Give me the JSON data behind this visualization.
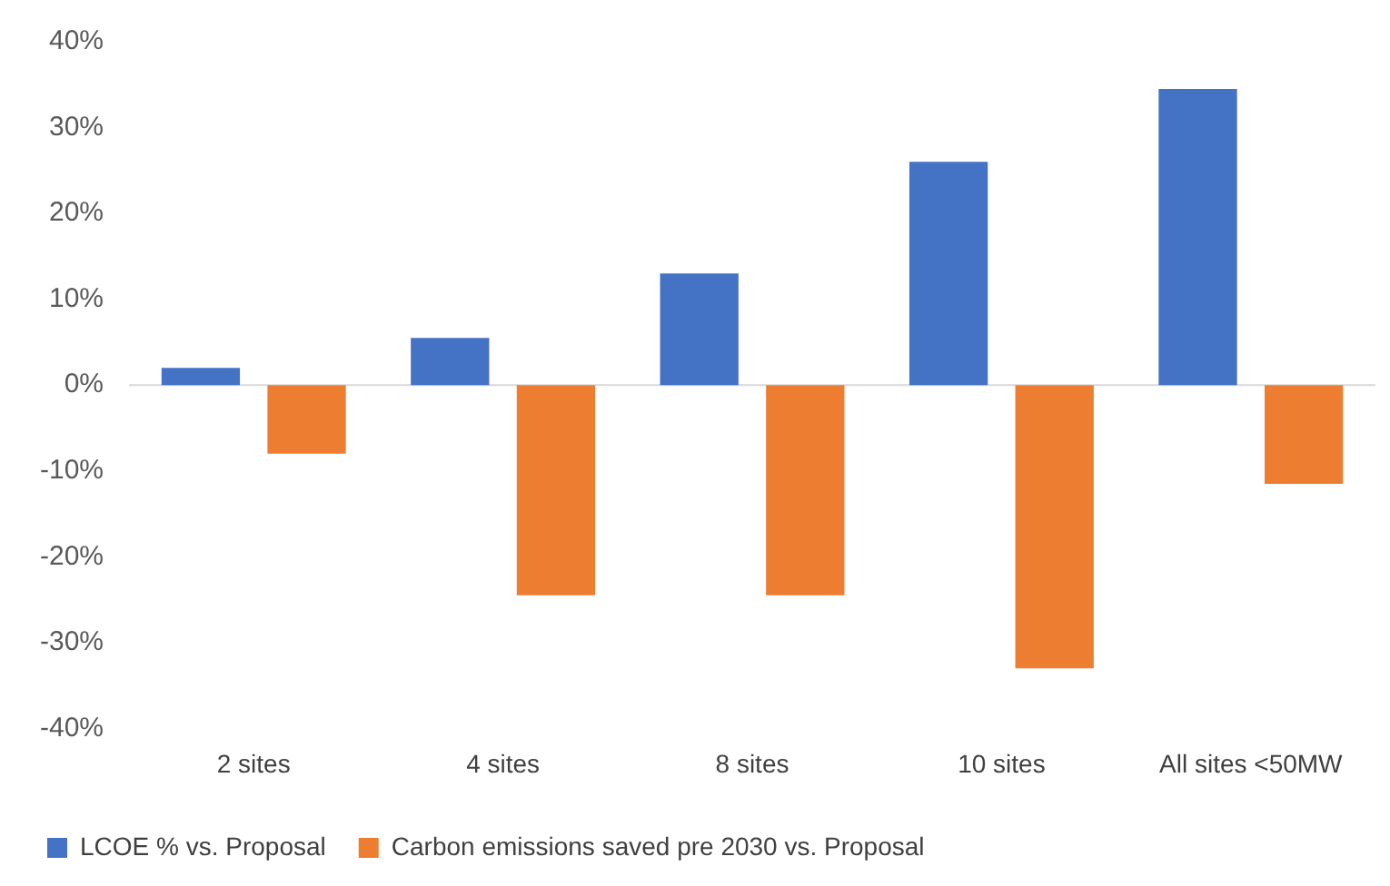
{
  "chart_data": {
    "type": "bar",
    "categories": [
      "2 sites",
      "4 sites",
      "8 sites",
      "10 sites",
      "All sites <50MW"
    ],
    "series": [
      {
        "name": "LCOE % vs. Proposal",
        "color": "#4472c4",
        "values": [
          2,
          5.5,
          13,
          26,
          34.5
        ]
      },
      {
        "name": "Carbon emissions saved pre 2030 vs. Proposal",
        "color": "#ed7d31",
        "values": [
          -8,
          -24.5,
          -24.5,
          -33,
          -11.5
        ]
      }
    ],
    "ylim": [
      -40,
      40
    ],
    "yticks": [
      {
        "value": -40,
        "label": "-40%"
      },
      {
        "value": -30,
        "label": "-30%"
      },
      {
        "value": -20,
        "label": "-20%"
      },
      {
        "value": -10,
        "label": "-10%"
      },
      {
        "value": 0,
        "label": "0%"
      },
      {
        "value": 10,
        "label": "10%"
      },
      {
        "value": 20,
        "label": "20%"
      },
      {
        "value": 30,
        "label": "30%"
      },
      {
        "value": 40,
        "label": "40%"
      }
    ],
    "ref_lines": [
      {
        "axis": "y",
        "value": 0,
        "color": "#d9d9d9"
      }
    ],
    "grid": false,
    "legend": "bottom left"
  }
}
